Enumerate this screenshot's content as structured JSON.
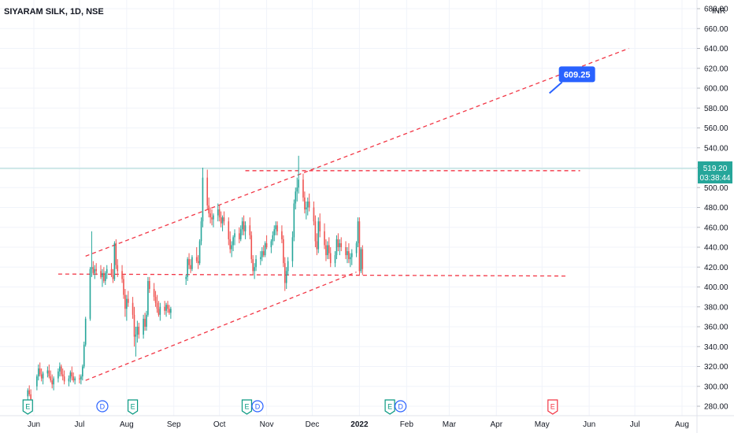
{
  "chart_data": {
    "type": "candlestick",
    "title": "SIYARAM SILK, 1D, NSE",
    "currency": "INR",
    "y_ticks": [
      280,
      300,
      320,
      340,
      360,
      380,
      400,
      420,
      440,
      460,
      480,
      500,
      520,
      540,
      560,
      580,
      600,
      620,
      640,
      660,
      680
    ],
    "y_tick_labels": [
      "280.00",
      "300.00",
      "320.00",
      "340.00",
      "360.00",
      "380.00",
      "400.00",
      "420.00",
      "440.00",
      "460.00",
      "480.00",
      "500.00",
      "520.00",
      "540.00",
      "560.00",
      "580.00",
      "600.00",
      "620.00",
      "640.00",
      "660.00",
      "680.00"
    ],
    "ylim": [
      272,
      684
    ],
    "x_labels": [
      {
        "label": "Jun",
        "day": 0
      },
      {
        "label": "Jul",
        "day": 30
      },
      {
        "label": "Aug",
        "day": 61
      },
      {
        "label": "Sep",
        "day": 92
      },
      {
        "label": "Oct",
        "day": 122
      },
      {
        "label": "Nov",
        "day": 153
      },
      {
        "label": "Dec",
        "day": 183
      },
      {
        "label": "2022",
        "day": 214
      },
      {
        "label": "Feb",
        "day": 245
      },
      {
        "label": "Mar",
        "day": 273
      },
      {
        "label": "Apr",
        "day": 304
      },
      {
        "label": "May",
        "day": 334
      },
      {
        "label": "Jun",
        "day": 365
      },
      {
        "label": "Jul",
        "day": 395
      },
      {
        "label": "Aug",
        "day": 426
      }
    ],
    "xlim": [
      -2,
      438
    ],
    "current_price": {
      "value": 519.2,
      "label": "519.20",
      "countdown": "03:38:44",
      "color": "#26a69a"
    },
    "target_label": {
      "label": "609.25",
      "day": 343,
      "value": 609.25,
      "color": "#2962ff"
    },
    "trend_lines": [
      {
        "name": "upper-channel",
        "points": [
          [
            34,
            431
          ],
          [
            391,
            640
          ]
        ],
        "color": "#f23645",
        "style": "dashed"
      },
      {
        "name": "lower-channel",
        "points": [
          [
            34,
            306
          ],
          [
            212,
            415
          ]
        ],
        "color": "#f23645",
        "style": "dashed"
      },
      {
        "name": "resistance",
        "points": [
          [
            139,
            517
          ],
          [
            359,
            517
          ]
        ],
        "color": "#f23645",
        "style": "dashed"
      },
      {
        "name": "support",
        "points": [
          [
            16,
            413
          ],
          [
            350,
            411
          ]
        ],
        "color": "#f23645",
        "style": "dashed"
      }
    ],
    "events": [
      {
        "type": "E",
        "day": -4,
        "value": 280,
        "color": "#089981"
      },
      {
        "type": "D",
        "day": 45,
        "value": 280,
        "color": "#2962ff"
      },
      {
        "type": "E",
        "day": 65,
        "value": 280,
        "color": "#089981"
      },
      {
        "type": "E",
        "day": 140,
        "value": 280,
        "color": "#089981"
      },
      {
        "type": "D",
        "day": 147,
        "value": 280,
        "color": "#2962ff"
      },
      {
        "type": "E",
        "day": 234,
        "value": 280,
        "color": "#089981"
      },
      {
        "type": "D",
        "day": 241,
        "value": 280,
        "color": "#2962ff"
      },
      {
        "type": "E",
        "day": 341,
        "value": 280,
        "color": "#f23645"
      }
    ],
    "candle_colors": {
      "up": "#26a69a",
      "down": "#ef5350"
    },
    "candles": [
      [
        -4,
        290,
        298,
        286,
        296
      ],
      [
        -3,
        296,
        301,
        290,
        292
      ],
      [
        -2,
        292,
        297,
        284,
        287
      ],
      [
        2,
        300,
        312,
        296,
        310
      ],
      [
        3,
        310,
        322,
        306,
        318
      ],
      [
        4,
        318,
        324,
        310,
        312
      ],
      [
        5,
        312,
        318,
        305,
        308
      ],
      [
        6,
        308,
        315,
        302,
        313
      ],
      [
        9,
        313,
        320,
        309,
        316
      ],
      [
        10,
        316,
        322,
        308,
        310
      ],
      [
        11,
        310,
        316,
        304,
        306
      ],
      [
        12,
        306,
        312,
        298,
        302
      ],
      [
        13,
        302,
        310,
        296,
        308
      ],
      [
        16,
        308,
        318,
        304,
        315
      ],
      [
        17,
        315,
        324,
        310,
        320
      ],
      [
        18,
        320,
        322,
        310,
        312
      ],
      [
        19,
        312,
        318,
        306,
        310
      ],
      [
        20,
        310,
        316,
        302,
        305
      ],
      [
        23,
        305,
        311,
        300,
        308
      ],
      [
        24,
        308,
        316,
        304,
        314
      ],
      [
        25,
        314,
        320,
        306,
        310
      ],
      [
        26,
        310,
        314,
        304,
        306
      ],
      [
        27,
        306,
        310,
        302,
        308
      ],
      [
        30,
        308,
        312,
        303,
        307
      ],
      [
        31,
        307,
        312,
        302,
        310
      ],
      [
        32,
        310,
        322,
        306,
        320
      ],
      [
        33,
        320,
        345,
        318,
        342
      ],
      [
        34,
        342,
        370,
        340,
        368
      ],
      [
        37,
        368,
        420,
        366,
        418
      ],
      [
        38,
        418,
        456,
        410,
        420
      ],
      [
        39,
        420,
        426,
        412,
        414
      ],
      [
        40,
        414,
        422,
        408,
        418
      ],
      [
        41,
        418,
        424,
        412,
        416
      ],
      [
        44,
        416,
        422,
        408,
        410
      ],
      [
        45,
        410,
        418,
        400,
        414
      ],
      [
        46,
        414,
        420,
        404,
        406
      ],
      [
        47,
        406,
        416,
        402,
        414
      ],
      [
        48,
        414,
        422,
        408,
        418
      ],
      [
        51,
        418,
        424,
        410,
        412
      ],
      [
        52,
        412,
        418,
        404,
        408
      ],
      [
        53,
        408,
        446,
        406,
        444
      ],
      [
        54,
        444,
        448,
        418,
        422
      ],
      [
        55,
        422,
        428,
        410,
        416
      ],
      [
        58,
        416,
        422,
        404,
        408
      ],
      [
        59,
        408,
        412,
        388,
        392
      ],
      [
        60,
        392,
        398,
        370,
        378
      ],
      [
        61,
        378,
        392,
        366,
        388
      ],
      [
        62,
        388,
        396,
        380,
        384
      ],
      [
        65,
        384,
        390,
        368,
        372
      ],
      [
        66,
        372,
        380,
        340,
        350
      ],
      [
        67,
        350,
        360,
        330,
        352
      ],
      [
        68,
        352,
        366,
        344,
        360
      ],
      [
        69,
        360,
        364,
        348,
        352
      ],
      [
        72,
        352,
        372,
        348,
        368
      ],
      [
        73,
        368,
        374,
        356,
        360
      ],
      [
        74,
        360,
        376,
        356,
        372
      ],
      [
        75,
        372,
        410,
        370,
        406
      ],
      [
        76,
        406,
        410,
        394,
        398
      ],
      [
        79,
        398,
        404,
        386,
        390
      ],
      [
        80,
        390,
        396,
        380,
        384
      ],
      [
        81,
        384,
        392,
        374,
        378
      ],
      [
        82,
        378,
        386,
        370,
        372
      ],
      [
        83,
        372,
        384,
        366,
        380
      ],
      [
        86,
        380,
        386,
        372,
        376
      ],
      [
        87,
        376,
        384,
        370,
        382
      ],
      [
        88,
        382,
        386,
        374,
        378
      ],
      [
        89,
        378,
        382,
        372,
        374
      ],
      [
        90,
        374,
        380,
        368,
        378
      ],
      [
        100,
        408,
        412,
        402,
        410
      ],
      [
        101,
        410,
        430,
        406,
        428
      ],
      [
        102,
        428,
        434,
        418,
        422
      ],
      [
        103,
        422,
        428,
        414,
        418
      ],
      [
        104,
        418,
        432,
        416,
        430
      ],
      [
        107,
        430,
        440,
        424,
        426
      ],
      [
        108,
        426,
        432,
        418,
        424
      ],
      [
        109,
        424,
        448,
        422,
        446
      ],
      [
        110,
        446,
        470,
        442,
        466
      ],
      [
        111,
        466,
        520,
        460,
        510
      ],
      [
        114,
        510,
        518,
        478,
        482
      ],
      [
        115,
        482,
        490,
        470,
        474
      ],
      [
        116,
        474,
        480,
        464,
        470
      ],
      [
        117,
        470,
        478,
        462,
        468
      ],
      [
        118,
        468,
        474,
        460,
        472
      ],
      [
        121,
        472,
        484,
        466,
        478
      ],
      [
        122,
        478,
        482,
        466,
        470
      ],
      [
        123,
        470,
        476,
        460,
        464
      ],
      [
        124,
        464,
        472,
        456,
        470
      ],
      [
        125,
        470,
        476,
        462,
        466
      ],
      [
        128,
        466,
        470,
        442,
        448
      ],
      [
        129,
        448,
        456,
        434,
        438
      ],
      [
        130,
        438,
        446,
        430,
        442
      ],
      [
        131,
        442,
        452,
        436,
        450
      ],
      [
        132,
        450,
        458,
        442,
        454
      ],
      [
        135,
        454,
        460,
        444,
        448
      ],
      [
        136,
        448,
        462,
        446,
        458
      ],
      [
        137,
        458,
        470,
        452,
        466
      ],
      [
        138,
        466,
        472,
        452,
        456
      ],
      [
        139,
        456,
        466,
        448,
        462
      ],
      [
        142,
        462,
        470,
        448,
        452
      ],
      [
        143,
        452,
        456,
        424,
        428
      ],
      [
        144,
        428,
        432,
        412,
        416
      ],
      [
        145,
        416,
        424,
        408,
        420
      ],
      [
        146,
        420,
        432,
        416,
        428
      ],
      [
        149,
        428,
        436,
        422,
        430
      ],
      [
        150,
        430,
        440,
        426,
        436
      ],
      [
        151,
        436,
        442,
        430,
        432
      ],
      [
        152,
        432,
        446,
        430,
        444
      ],
      [
        153,
        444,
        452,
        438,
        440
      ],
      [
        156,
        440,
        448,
        434,
        446
      ],
      [
        157,
        446,
        456,
        442,
        452
      ],
      [
        158,
        452,
        462,
        446,
        458
      ],
      [
        159,
        458,
        466,
        452,
        462
      ],
      [
        160,
        462,
        466,
        452,
        456
      ],
      [
        163,
        456,
        462,
        444,
        448
      ],
      [
        164,
        448,
        452,
        420,
        424
      ],
      [
        165,
        424,
        430,
        396,
        404
      ],
      [
        166,
        404,
        420,
        398,
        416
      ],
      [
        167,
        416,
        430,
        412,
        426
      ],
      [
        170,
        426,
        456,
        420,
        450
      ],
      [
        171,
        450,
        488,
        446,
        484
      ],
      [
        172,
        484,
        500,
        478,
        496
      ],
      [
        173,
        496,
        510,
        486,
        500
      ],
      [
        174,
        500,
        532,
        494,
        508
      ],
      [
        177,
        508,
        514,
        486,
        490
      ],
      [
        178,
        490,
        496,
        474,
        478
      ],
      [
        179,
        478,
        486,
        468,
        480
      ],
      [
        180,
        480,
        490,
        472,
        486
      ],
      [
        181,
        486,
        494,
        476,
        480
      ],
      [
        184,
        480,
        486,
        462,
        466
      ],
      [
        185,
        466,
        472,
        440,
        446
      ],
      [
        186,
        446,
        454,
        432,
        438
      ],
      [
        187,
        438,
        470,
        434,
        466
      ],
      [
        188,
        466,
        474,
        450,
        456
      ],
      [
        191,
        456,
        464,
        438,
        442
      ],
      [
        192,
        442,
        448,
        426,
        432
      ],
      [
        193,
        432,
        446,
        428,
        442
      ],
      [
        194,
        442,
        450,
        428,
        434
      ],
      [
        195,
        434,
        440,
        420,
        424
      ],
      [
        198,
        424,
        436,
        420,
        432
      ],
      [
        199,
        432,
        452,
        428,
        448
      ],
      [
        200,
        448,
        454,
        436,
        440
      ],
      [
        201,
        440,
        448,
        432,
        444
      ],
      [
        202,
        444,
        450,
        436,
        440
      ],
      [
        205,
        440,
        446,
        428,
        432
      ],
      [
        206,
        432,
        440,
        424,
        436
      ],
      [
        207,
        436,
        444,
        424,
        428
      ],
      [
        208,
        428,
        434,
        420,
        430
      ],
      [
        209,
        430,
        438,
        422,
        434
      ],
      [
        212,
        434,
        446,
        430,
        444
      ],
      [
        213,
        444,
        470,
        440,
        466
      ],
      [
        214,
        466,
        470,
        412,
        416
      ],
      [
        215,
        416,
        440,
        414,
        438
      ],
      [
        216,
        438,
        442,
        412,
        418
      ]
    ],
    "timeline_candles": [
      [
        214,
        416,
        420,
        412,
        414
      ]
    ]
  }
}
